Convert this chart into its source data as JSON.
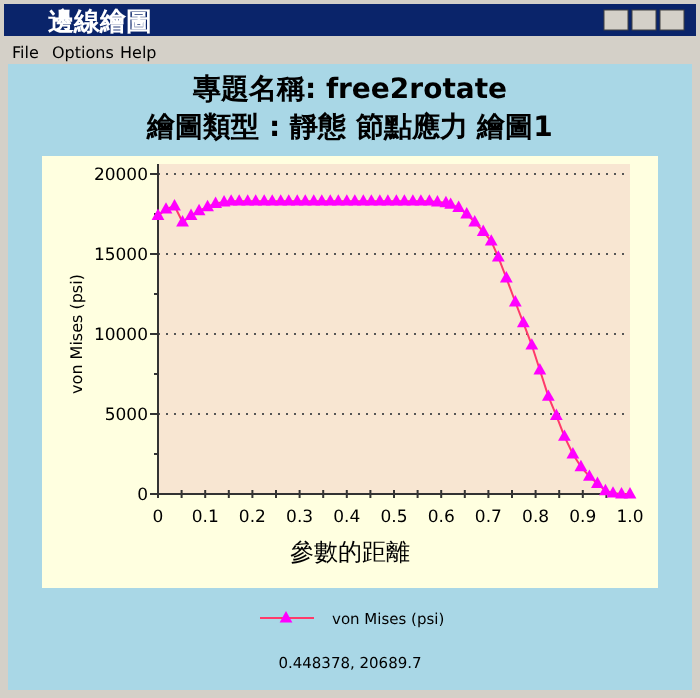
{
  "chart_data": {
    "type": "line",
    "title": "專題名稱: free2rotate",
    "subtitle": "繪圖類型 : 靜態 節點應力 繪圖1",
    "xlabel": "參數的距離",
    "ylabel": "von Mises (psi)",
    "annotations": [
      "邊線繪圖",
      "File",
      "Options",
      "Help",
      "0.448378, 20689.7"
    ],
    "x": [
      0,
      0.017,
      0.035,
      0.052,
      0.07,
      0.087,
      0.105,
      0.122,
      0.14,
      0.155,
      0.172,
      0.19,
      0.207,
      0.225,
      0.242,
      0.26,
      0.277,
      0.295,
      0.312,
      0.33,
      0.347,
      0.365,
      0.382,
      0.4,
      0.417,
      0.435,
      0.452,
      0.47,
      0.487,
      0.505,
      0.522,
      0.54,
      0.557,
      0.575,
      0.592,
      0.61,
      0.62,
      0.637,
      0.654,
      0.671,
      0.689,
      0.706,
      0.721,
      0.738,
      0.757,
      0.774,
      0.792,
      0.809,
      0.827,
      0.844,
      0.861,
      0.879,
      0.896,
      0.914,
      0.931,
      0.948,
      0.964,
      0.982,
      1.0
    ],
    "series": [
      {
        "name": "von Mises (psi)",
        "color": "#ff00ff",
        "values": [
          17400,
          17800,
          18000,
          17000,
          17400,
          17700,
          17950,
          18150,
          18250,
          18300,
          18300,
          18300,
          18300,
          18300,
          18300,
          18300,
          18300,
          18300,
          18300,
          18300,
          18300,
          18300,
          18300,
          18300,
          18300,
          18300,
          18300,
          18300,
          18300,
          18300,
          18300,
          18300,
          18300,
          18300,
          18250,
          18200,
          18100,
          17900,
          17500,
          17000,
          16400,
          15800,
          14800,
          13500,
          12000,
          10700,
          9300,
          7750,
          6100,
          4900,
          3600,
          2500,
          1700,
          1100,
          650,
          200,
          50,
          0,
          0
        ]
      }
    ],
    "xlim": [
      0,
      1
    ],
    "ylim": [
      0,
      20000
    ],
    "xticks": [
      0,
      {
        "value": 0.05,
        "label": null
      },
      {
        "value": 0.1,
        "label": "0.1"
      },
      {
        "value": 0.15,
        "label": null
      },
      {
        "value": 0.2,
        "label": "0.2"
      },
      {
        "value": 0.25,
        "label": null
      },
      {
        "value": 0.3,
        "label": "0.3"
      },
      {
        "value": 0.35,
        "label": null
      },
      {
        "value": 0.4,
        "label": "0.4"
      },
      {
        "value": 0.45,
        "label": null
      },
      {
        "value": 0.5,
        "label": "0.5"
      },
      {
        "value": 0.55,
        "label": null
      },
      {
        "value": 0.6,
        "label": "0.6"
      },
      {
        "value": 0.65,
        "label": null
      },
      {
        "value": 0.7,
        "label": "0.7"
      },
      {
        "value": 0.75,
        "label": null
      },
      {
        "value": 0.8,
        "label": "0.8"
      },
      {
        "value": 0.85,
        "label": null
      },
      {
        "value": 0.9,
        "label": "0.9"
      },
      {
        "value": 0.95,
        "label": null
      },
      {
        "value": 1,
        "label": "1.0"
      }
    ],
    "yticks": [
      0,
      {
        "value": 2500,
        "label": null
      },
      5000,
      {
        "value": 7500,
        "label": null
      },
      10000,
      {
        "value": 12500,
        "label": null
      },
      15000,
      {
        "value": 17500,
        "label": null
      },
      20000
    ],
    "grid": "y",
    "legend": "bottom",
    "marker": "triangle",
    "line_style": "solid"
  }
}
